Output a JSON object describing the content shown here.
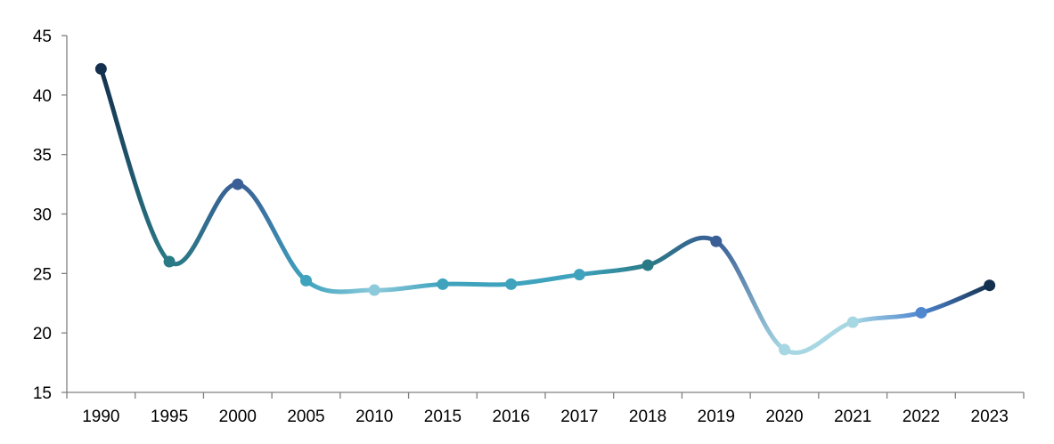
{
  "chart_data": {
    "type": "line",
    "title": "",
    "xlabel": "",
    "ylabel": "",
    "categories": [
      "1990",
      "1995",
      "2000",
      "2005",
      "2010",
      "2015",
      "2016",
      "2017",
      "2018",
      "2019",
      "2020",
      "2021",
      "2022",
      "2023"
    ],
    "series": [
      {
        "values": [
          42.2,
          26.0,
          32.5,
          24.4,
          23.6,
          24.1,
          24.1,
          24.9,
          25.7,
          27.7,
          18.6,
          20.9,
          21.7,
          24.0
        ]
      }
    ],
    "ylim": [
      15,
      45
    ],
    "yticks": [
      15,
      20,
      25,
      30,
      35,
      40,
      45
    ],
    "grid": false,
    "legend": "none",
    "line_style": "smooth",
    "point_colors": [
      "#14304f",
      "#2a7a86",
      "#3a5f96",
      "#3fa3bd",
      "#8cc9db",
      "#3fa3bd",
      "#3fa3bd",
      "#3fa3bd",
      "#2a7a86",
      "#3a5f96",
      "#a7d7e3",
      "#a7d7e3",
      "#4f86d0",
      "#14304f"
    ]
  }
}
